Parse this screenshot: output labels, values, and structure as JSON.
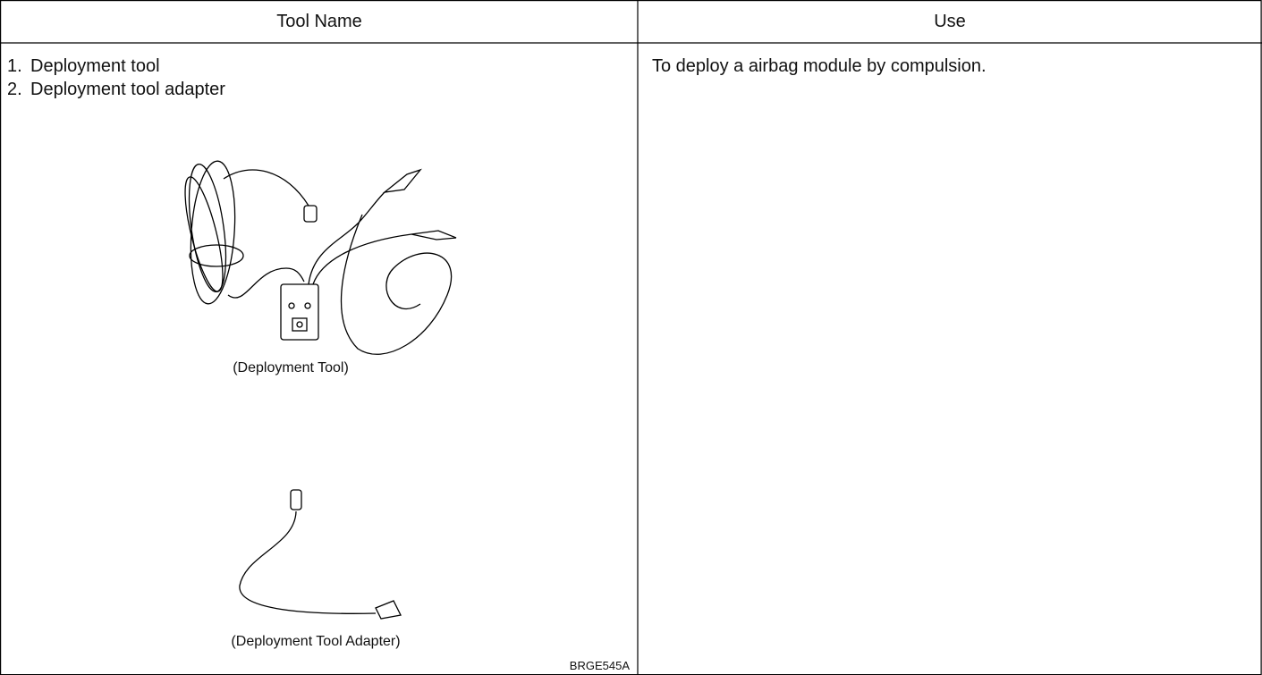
{
  "table": {
    "header": [
      "Tool Name",
      "Use"
    ],
    "rows": [
      {
        "items": [
          {
            "number": "1.",
            "text": "Deployment tool"
          },
          {
            "number": "2.",
            "text": "Deployment tool adapter"
          }
        ],
        "figure": {
          "captions": [
            "(Deployment Tool)",
            "(Deployment Tool Adapter)"
          ],
          "code": "BRGE545A"
        },
        "use": "To deploy a airbag module by compulsion."
      }
    ]
  }
}
